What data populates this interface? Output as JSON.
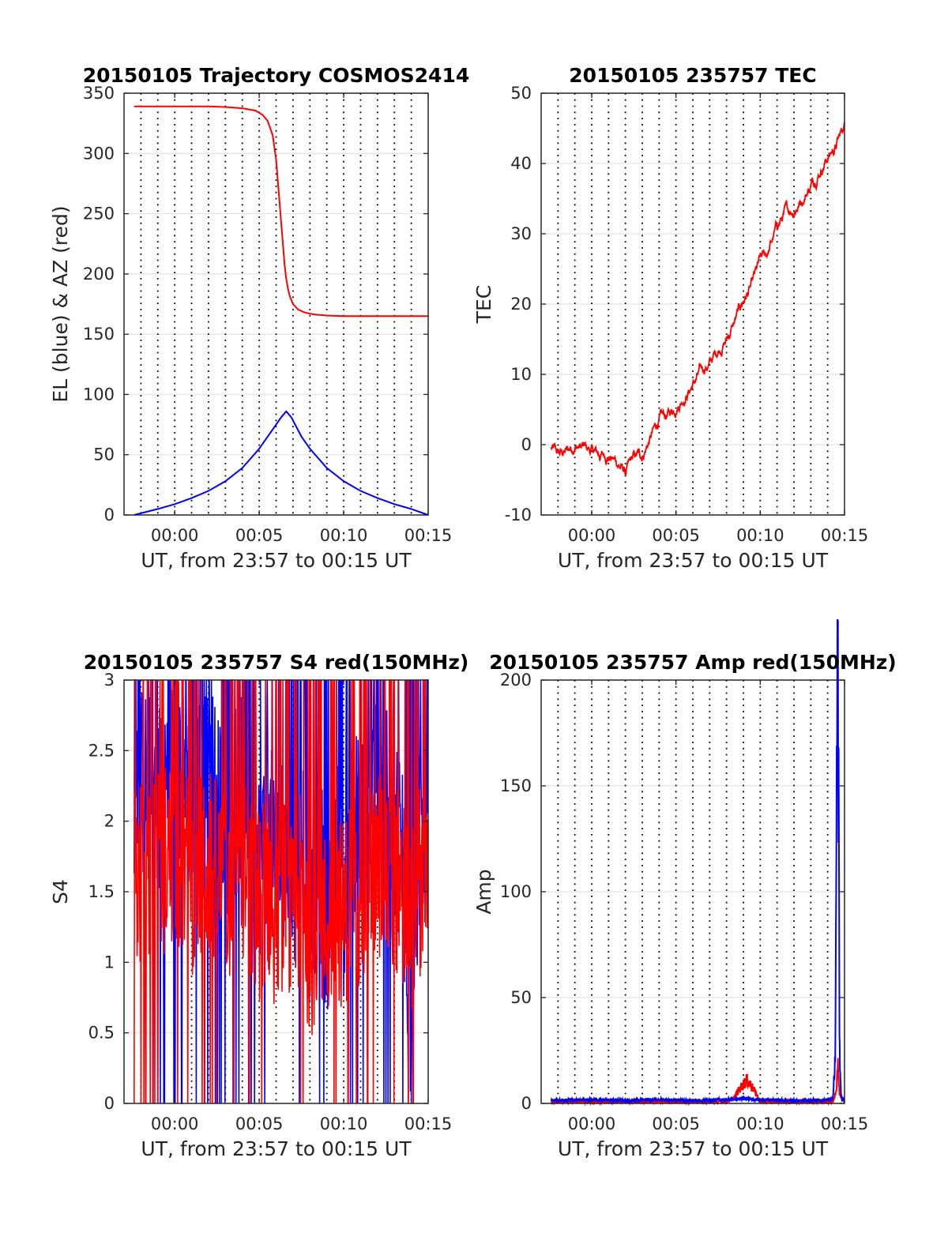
{
  "chart_data": [
    {
      "type": "line",
      "title": "20150105 Trajectory COSMOS2414",
      "xlabel": "UT, from 23:57 to 00:15 UT",
      "ylabel": "EL (blue) & AZ (red)",
      "xlim": [
        -3.0,
        15.0
      ],
      "ylim": [
        0,
        350
      ],
      "xticks": [
        0,
        5,
        10,
        15
      ],
      "xtick_labels": [
        "00:00",
        "00:05",
        "00:10",
        "00:15"
      ],
      "yticks": [
        0,
        50,
        100,
        150,
        200,
        250,
        300,
        350
      ],
      "ytick_labels": [
        "0",
        "50",
        "100",
        "150",
        "200",
        "250",
        "300",
        "350"
      ],
      "grid": "horizontal solid gridlines, vertical dotted lines every minute",
      "series": [
        {
          "color": "#ff0000",
          "x": [
            -2.4,
            -1,
            0,
            1,
            2,
            3,
            4,
            4.8,
            5.2,
            5.5,
            5.8,
            6.0,
            6.2,
            6.4,
            6.5,
            6.6,
            6.7,
            6.8,
            7.0,
            7.3,
            7.7,
            8.2,
            9.0,
            10.0,
            11.0,
            12.5,
            15.0
          ],
          "y": [
            339,
            339,
            339,
            339,
            339,
            338.5,
            337.5,
            335.5,
            332,
            327,
            315,
            295,
            260,
            225,
            208,
            196,
            188,
            182,
            175,
            170.5,
            168,
            166.5,
            165.5,
            165,
            165,
            165,
            165
          ]
        },
        {
          "color": "#0000ff",
          "x": [
            -2.4,
            -1,
            0,
            1,
            2,
            3,
            4,
            5,
            5.5,
            6,
            6.3,
            6.6,
            6.9,
            7.2,
            7.5,
            8,
            9,
            10,
            11,
            12,
            13,
            14,
            15
          ],
          "y": [
            0,
            5,
            9,
            14,
            20,
            28,
            39,
            55,
            65,
            75,
            81,
            86,
            81,
            73,
            65,
            55,
            39,
            28,
            20,
            14,
            9,
            5,
            0
          ]
        }
      ]
    },
    {
      "type": "line",
      "title": "20150105 235757 TEC",
      "xlabel": "UT, from 23:57 to 00:15 UT",
      "ylabel": "TEC",
      "xlim": [
        -3.0,
        15.0
      ],
      "ylim": [
        -10,
        50
      ],
      "xticks": [
        0,
        5,
        10,
        15
      ],
      "xtick_labels": [
        "00:00",
        "00:05",
        "00:10",
        "00:15"
      ],
      "yticks": [
        -10,
        0,
        10,
        20,
        30,
        40,
        50
      ],
      "ytick_labels": [
        "-10",
        "0",
        "10",
        "20",
        "30",
        "40",
        "50"
      ],
      "grid": "horizontal solid gridlines, vertical dotted lines every minute",
      "series": [
        {
          "color": "#ff0000",
          "x": [
            -2.4,
            -2.0,
            -1.5,
            -1.0,
            -0.5,
            0.0,
            0.5,
            1.0,
            1.5,
            2.0,
            2.5,
            3.0,
            3.5,
            4.0,
            4.5,
            5.0,
            5.5,
            6.0,
            6.5,
            7.0,
            7.5,
            8.0,
            8.5,
            9.0,
            9.5,
            10.0,
            10.5,
            11.0,
            11.5,
            12.0,
            12.5,
            13.0,
            13.5,
            14.0,
            14.5,
            15.0
          ],
          "y": [
            -0.5,
            -1.5,
            -1.0,
            0.0,
            -0.5,
            -1.0,
            -1.5,
            -1.5,
            -2.5,
            -4.0,
            -2.0,
            -1.5,
            1.0,
            3.5,
            4.0,
            5.5,
            7.0,
            8.5,
            10.5,
            11.5,
            13.5,
            15.0,
            17.5,
            20.5,
            22.5,
            26.0,
            27.5,
            31.0,
            33.0,
            33.5,
            35.0,
            37.0,
            39.0,
            41.0,
            42.5,
            45.5
          ]
        }
      ]
    },
    {
      "type": "line",
      "title": "20150105 235757 S4 red(150MHz)",
      "xlabel": "UT, from 23:57 to 00:15 UT",
      "ylabel": "S4",
      "xlim": [
        -3.0,
        15.0
      ],
      "ylim": [
        0,
        3
      ],
      "xticks": [
        0,
        5,
        10,
        15
      ],
      "xtick_labels": [
        "00:00",
        "00:05",
        "00:10",
        "00:15"
      ],
      "yticks": [
        0,
        0.5,
        1,
        1.5,
        2,
        2.5,
        3
      ],
      "ytick_labels": [
        "0",
        "0.5",
        "1",
        "1.5",
        "2",
        "2.5",
        "3"
      ],
      "grid": "horizontal solid gridlines, vertical dotted lines every minute",
      "series": [
        {
          "color": "#0000ff",
          "x": [
            -2.4,
            -1,
            0,
            1,
            2,
            3,
            4,
            5,
            5.5,
            6,
            6.5,
            7,
            7.5,
            8,
            8.5,
            9,
            9.5,
            10,
            10.5,
            11,
            12,
            13,
            13.5,
            14,
            14.5,
            15
          ],
          "y": [
            2.3,
            2.2,
            2.4,
            2.1,
            2.3,
            2.0,
            2.2,
            1.7,
            2.0,
            1.6,
            1.9,
            1.4,
            2.0,
            1.2,
            1.8,
            1.3,
            1.9,
            1.4,
            2.1,
            1.9,
            2.2,
            2.0,
            1.8,
            0.5,
            2.0,
            1.9
          ]
        },
        {
          "color": "#ff0000",
          "x": [
            -2.4,
            -1,
            0,
            1,
            2,
            3,
            4,
            5,
            5.5,
            6,
            6.5,
            7,
            7.5,
            8,
            8.5,
            9,
            9.5,
            10,
            10.5,
            11,
            12,
            13,
            13.5,
            14,
            14.5,
            15
          ],
          "y": [
            1.6,
            1.7,
            1.8,
            1.6,
            1.7,
            1.5,
            1.6,
            1.4,
            1.6,
            1.3,
            1.5,
            1.2,
            1.6,
            1.1,
            1.4,
            1.2,
            1.5,
            1.3,
            1.6,
            1.5,
            1.7,
            1.6,
            1.5,
            1.3,
            1.6,
            1.5
          ]
        }
      ]
    },
    {
      "type": "line",
      "title": "20150105 235757 Amp red(150MHz)",
      "xlabel": "UT, from 23:57 to 00:15 UT",
      "ylabel": "Amp",
      "xlim": [
        -3.0,
        15.0
      ],
      "ylim": [
        0,
        200
      ],
      "xticks": [
        0,
        5,
        10,
        15
      ],
      "xtick_labels": [
        "00:00",
        "00:05",
        "00:10",
        "00:15"
      ],
      "yticks": [
        0,
        50,
        100,
        150,
        200
      ],
      "ytick_labels": [
        "0",
        "50",
        "100",
        "150",
        "200"
      ],
      "grid": "horizontal solid gridlines, vertical dotted lines every minute",
      "series": [
        {
          "color": "#ff0000",
          "x": [
            -2.4,
            8.0,
            8.4,
            8.7,
            9.0,
            9.2,
            9.5,
            9.8,
            10.0,
            14.3,
            14.5,
            14.6,
            14.7,
            15.0
          ],
          "y": [
            0.5,
            0.5,
            2,
            6,
            9,
            11,
            8,
            4,
            0.5,
            0.5,
            5,
            20,
            5,
            0.5
          ]
        },
        {
          "color": "#0000ff",
          "x": [
            -2.4,
            0,
            2,
            4,
            6,
            8,
            9,
            10,
            12,
            14.3,
            14.45,
            14.55,
            14.6,
            14.65,
            14.7,
            14.8,
            15.0
          ],
          "y": [
            1,
            1.5,
            1,
            1.5,
            1,
            1.5,
            2,
            1.5,
            1,
            1.5,
            20,
            168,
            188,
            165,
            30,
            2,
            1
          ]
        }
      ]
    }
  ]
}
